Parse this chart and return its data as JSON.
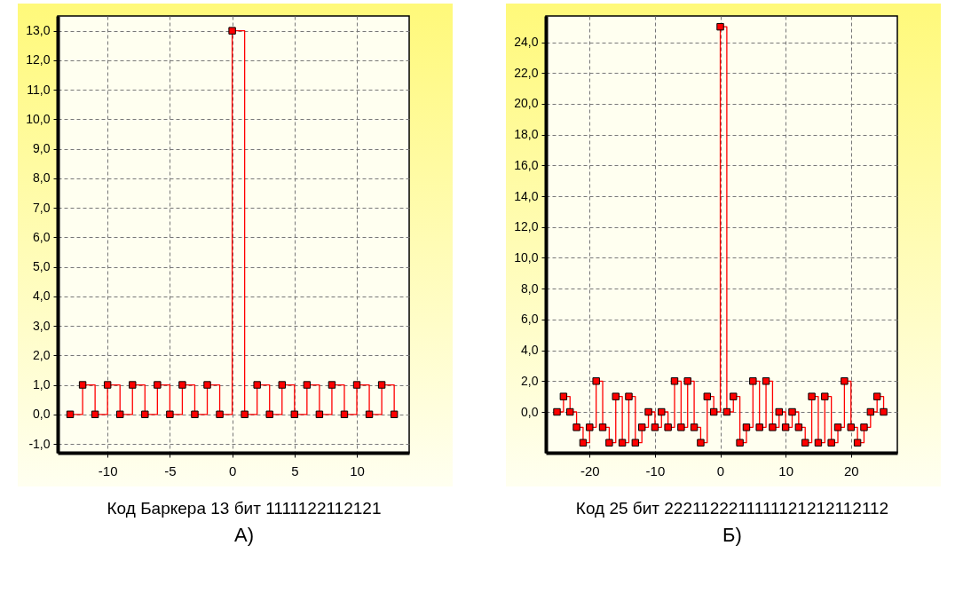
{
  "chart_data": [
    {
      "type": "step",
      "color": "#ff0000",
      "marker": "square",
      "grid": true,
      "x": [
        -13,
        -12,
        -11,
        -10,
        -9,
        -8,
        -7,
        -6,
        -5,
        -4,
        -3,
        -2,
        -1,
        0,
        1,
        2,
        3,
        4,
        5,
        6,
        7,
        8,
        9,
        10,
        11,
        12,
        13
      ],
      "values": [
        0,
        1,
        0,
        1,
        0,
        1,
        0,
        1,
        0,
        1,
        0,
        1,
        0,
        13,
        0,
        1,
        0,
        1,
        0,
        1,
        0,
        1,
        0,
        1,
        0,
        1,
        0
      ],
      "xlim": [
        -14,
        14.2
      ],
      "ylim": [
        -1.3,
        13.5
      ],
      "xticks": [
        -10,
        -5,
        0,
        5,
        10
      ],
      "yticks": [
        {
          "value": -1,
          "label": "-1,0"
        },
        {
          "value": 0,
          "label": "0,0"
        },
        {
          "value": 1,
          "label": "1,0"
        },
        {
          "value": 2,
          "label": "2,0"
        },
        {
          "value": 3,
          "label": "3,0"
        },
        {
          "value": 4,
          "label": "4,0"
        },
        {
          "value": 5,
          "label": "5,0"
        },
        {
          "value": 6,
          "label": "6,0"
        },
        {
          "value": 7,
          "label": "7,0"
        },
        {
          "value": 8,
          "label": "8,0"
        },
        {
          "value": 9,
          "label": "9,0"
        },
        {
          "value": 10,
          "label": "10,0"
        },
        {
          "value": 11,
          "label": "11,0"
        },
        {
          "value": 12,
          "label": "12,0"
        },
        {
          "value": 13,
          "label": "13,0"
        }
      ],
      "annotations": [
        "Код Баркера 13 бит  1111122112121",
        "А)"
      ]
    },
    {
      "type": "step",
      "color": "#ff0000",
      "marker": "square",
      "grid": true,
      "x": [
        -25,
        -24,
        -23,
        -22,
        -21,
        -20,
        -19,
        -18,
        -17,
        -16,
        -15,
        -14,
        -13,
        -12,
        -11,
        -10,
        -9,
        -8,
        -7,
        -6,
        -5,
        -4,
        -3,
        -2,
        -1,
        0,
        1,
        2,
        3,
        4,
        5,
        6,
        7,
        8,
        9,
        10,
        11,
        12,
        13,
        14,
        15,
        16,
        17,
        18,
        19,
        20,
        21,
        22,
        23,
        24,
        25
      ],
      "values": [
        0,
        1,
        0,
        -1,
        -2,
        -1,
        2,
        -1,
        -2,
        1,
        -2,
        1,
        -2,
        -1,
        0,
        -1,
        0,
        -1,
        2,
        -1,
        2,
        -1,
        -2,
        1,
        0,
        25,
        0,
        1,
        -2,
        -1,
        2,
        -1,
        2,
        -1,
        0,
        -1,
        0,
        -1,
        -2,
        1,
        -2,
        1,
        -2,
        -1,
        2,
        -1,
        -2,
        -1,
        0,
        1,
        0
      ],
      "xlim": [
        -26.7,
        27.1
      ],
      "ylim": [
        -2.65,
        25.7
      ],
      "xticks": [
        -20,
        -10,
        0,
        10,
        20
      ],
      "yticks": [
        {
          "value": 0,
          "label": "0,0"
        },
        {
          "value": 2,
          "label": "2,0"
        },
        {
          "value": 4,
          "label": "4,0"
        },
        {
          "value": 6,
          "label": "6,0"
        },
        {
          "value": 8,
          "label": "8,0"
        },
        {
          "value": 10,
          "label": "10,0"
        },
        {
          "value": 12,
          "label": "12,0"
        },
        {
          "value": 14,
          "label": "14,0"
        },
        {
          "value": 16,
          "label": "16,0"
        },
        {
          "value": 18,
          "label": "18,0"
        },
        {
          "value": 20,
          "label": "20,0"
        },
        {
          "value": 22,
          "label": "22,0"
        },
        {
          "value": 24,
          "label": "24,0"
        }
      ],
      "annotations": [
        "Код 25 бит  2221122211111121212112112",
        "Б)"
      ]
    }
  ]
}
